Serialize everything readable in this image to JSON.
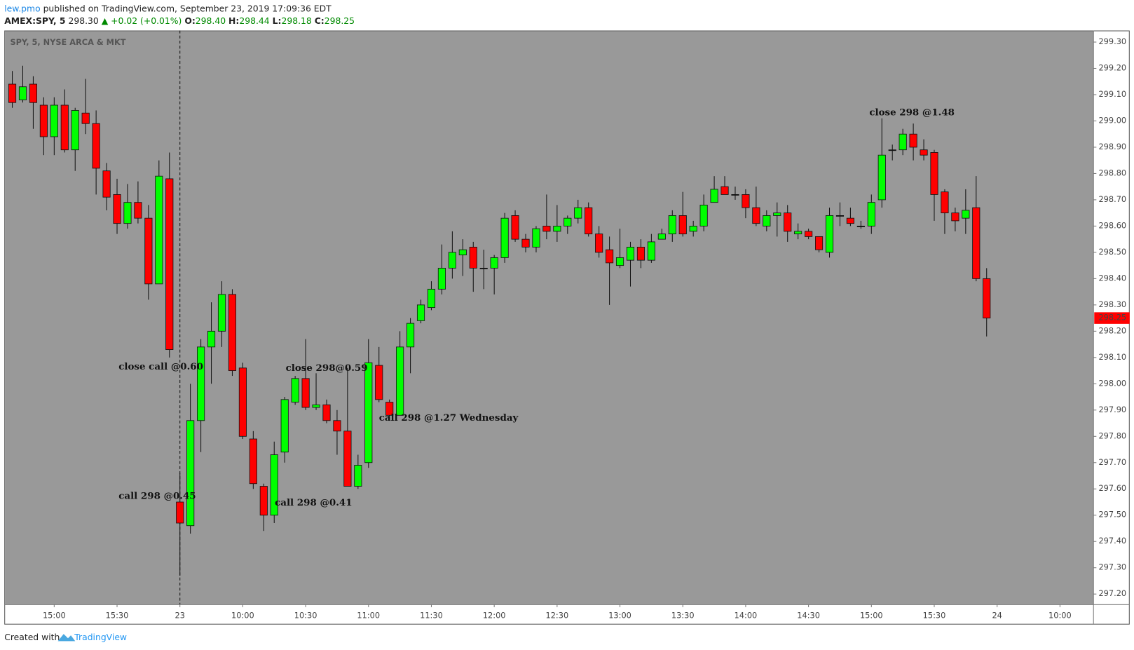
{
  "header": {
    "author": "lew.pmo",
    "published": "published on TradingView.com, September 23, 2019 17:09:36 EDT",
    "symbol": "AMEX:SPY, 5",
    "last": "298.30",
    "change": "▲ +0.02 (+0.01%)",
    "o_label": "O:",
    "o_value": "298.40",
    "h_label": "H:",
    "h_value": "298.44",
    "l_label": "L:",
    "l_value": "298.18",
    "c_label": "C:",
    "c_value": "298.25"
  },
  "footer": {
    "created": "Created with",
    "brand": "TradingView"
  },
  "chart_data": {
    "type": "candlestick",
    "title": "SPY, 5, NYSE ARCA & MKT",
    "up_color": "#00ff00",
    "down_color": "#ff0000",
    "open": [
      299.14,
      299.08,
      299.14,
      299.06,
      298.94,
      299.06,
      298.89,
      299.03,
      298.99,
      298.81,
      298.72,
      298.61,
      298.69,
      298.63,
      298.38,
      298.78,
      297.55,
      297.46,
      297.86,
      298.14,
      298.2,
      298.34,
      298.06,
      297.79,
      297.61,
      297.5,
      297.74,
      297.93,
      298.02,
      297.91,
      297.92,
      297.86,
      297.82,
      297.61,
      297.7,
      298.07,
      297.93,
      297.88,
      298.14,
      298.24,
      298.29,
      298.36,
      298.44,
      298.49,
      298.52,
      298.44,
      298.44,
      298.48,
      298.64,
      298.55,
      298.52,
      298.6,
      298.58,
      298.6,
      298.63,
      298.67,
      298.57,
      298.51,
      298.45,
      298.47,
      298.52,
      298.47,
      298.55,
      298.57,
      298.64,
      298.58,
      298.6,
      298.69,
      298.75,
      298.72,
      298.72,
      298.67,
      298.6,
      298.64,
      298.65,
      298.57,
      298.58,
      298.56,
      298.5,
      298.64,
      298.63,
      298.6,
      298.6,
      298.7,
      298.89,
      298.89,
      298.95,
      298.89,
      298.88,
      298.73,
      298.65,
      298.63,
      298.67,
      298.4
    ],
    "high": [
      299.19,
      299.21,
      299.17,
      299.09,
      299.09,
      299.12,
      299.05,
      299.16,
      299.04,
      298.84,
      298.78,
      298.76,
      298.77,
      298.68,
      298.85,
      298.88,
      297.66,
      298.0,
      298.17,
      298.31,
      298.39,
      298.36,
      298.08,
      297.82,
      297.62,
      297.78,
      297.95,
      298.03,
      298.17,
      298.04,
      297.94,
      297.9,
      298.06,
      297.73,
      298.17,
      298.14,
      297.94,
      298.2,
      298.25,
      298.32,
      298.39,
      298.53,
      298.58,
      298.55,
      298.54,
      298.51,
      298.49,
      298.65,
      298.66,
      298.57,
      298.6,
      298.72,
      298.68,
      298.64,
      298.7,
      298.69,
      298.6,
      298.56,
      298.59,
      298.54,
      298.55,
      298.57,
      298.59,
      298.66,
      298.73,
      298.62,
      298.72,
      298.79,
      298.79,
      298.75,
      298.74,
      298.75,
      298.66,
      298.69,
      298.68,
      298.61,
      298.59,
      298.56,
      298.67,
      298.69,
      298.67,
      298.62,
      298.72,
      299.01,
      298.91,
      298.97,
      298.99,
      298.93,
      298.89,
      298.74,
      298.67,
      298.74,
      298.79,
      298.44
    ],
    "low": [
      299.05,
      299.07,
      298.97,
      298.87,
      298.87,
      298.88,
      298.81,
      298.95,
      298.72,
      298.66,
      298.57,
      298.59,
      298.61,
      298.32,
      298.38,
      298.1,
      297.27,
      297.43,
      297.74,
      298.0,
      298.14,
      298.03,
      297.79,
      297.6,
      297.44,
      297.47,
      297.7,
      297.92,
      297.9,
      297.9,
      297.85,
      297.73,
      297.61,
      297.6,
      297.68,
      297.93,
      297.86,
      297.88,
      298.04,
      298.23,
      298.28,
      298.34,
      298.4,
      298.41,
      298.35,
      298.36,
      298.34,
      298.46,
      298.54,
      298.5,
      298.5,
      298.55,
      298.54,
      298.57,
      298.61,
      298.56,
      298.48,
      298.3,
      298.44,
      298.37,
      298.44,
      298.46,
      298.55,
      298.54,
      298.56,
      298.56,
      298.58,
      298.69,
      298.72,
      298.7,
      298.63,
      298.6,
      298.58,
      298.56,
      298.54,
      298.55,
      298.55,
      298.5,
      298.48,
      298.6,
      298.6,
      298.59,
      298.57,
      298.67,
      298.85,
      298.87,
      298.85,
      298.85,
      298.62,
      298.57,
      298.58,
      298.57,
      298.39,
      298.18
    ],
    "close": [
      299.07,
      299.13,
      299.07,
      298.94,
      299.06,
      298.89,
      299.04,
      298.99,
      298.82,
      298.71,
      298.61,
      298.69,
      298.63,
      298.38,
      298.79,
      298.13,
      297.47,
      297.86,
      298.14,
      298.2,
      298.34,
      298.05,
      297.8,
      297.62,
      297.5,
      297.73,
      297.94,
      298.02,
      297.91,
      297.92,
      297.86,
      297.82,
      297.61,
      297.69,
      298.08,
      297.94,
      297.88,
      298.14,
      298.23,
      298.3,
      298.36,
      298.44,
      298.5,
      298.51,
      298.44,
      298.44,
      298.48,
      298.63,
      298.55,
      298.52,
      298.59,
      298.58,
      298.6,
      298.63,
      298.67,
      298.57,
      298.5,
      298.46,
      298.48,
      298.52,
      298.47,
      298.54,
      298.57,
      298.64,
      298.57,
      298.6,
      298.68,
      298.74,
      298.72,
      298.72,
      298.67,
      298.61,
      298.64,
      298.65,
      298.58,
      298.58,
      298.56,
      298.51,
      298.64,
      298.64,
      298.61,
      298.6,
      298.69,
      298.87,
      298.89,
      298.95,
      298.9,
      298.87,
      298.72,
      298.65,
      298.62,
      298.66,
      298.4,
      298.25
    ],
    "xlim": [
      -0.69,
      103.2
    ],
    "xticks": [
      {
        "value": 4,
        "label": "15:00"
      },
      {
        "value": 10,
        "label": "15:30"
      },
      {
        "value": 16,
        "label": "23"
      },
      {
        "value": 22,
        "label": "10:00"
      },
      {
        "value": 28,
        "label": "10:30"
      },
      {
        "value": 34,
        "label": "11:00"
      },
      {
        "value": 40,
        "label": "11:30"
      },
      {
        "value": 46,
        "label": "12:00"
      },
      {
        "value": 52,
        "label": "12:30"
      },
      {
        "value": 58,
        "label": "13:00"
      },
      {
        "value": 64,
        "label": "13:30"
      },
      {
        "value": 70,
        "label": "14:00"
      },
      {
        "value": 76,
        "label": "14:30"
      },
      {
        "value": 82,
        "label": "15:00"
      },
      {
        "value": 88,
        "label": "15:30"
      },
      {
        "value": 94,
        "label": "24"
      },
      {
        "value": 100,
        "label": "10:00"
      }
    ],
    "ylim": [
      297.161,
      299.344
    ],
    "yticks": [
      {
        "value": 297.2,
        "label": "297.20"
      },
      {
        "value": 297.3,
        "label": "297.30"
      },
      {
        "value": 297.4,
        "label": "297.40"
      },
      {
        "value": 297.5,
        "label": "297.50"
      },
      {
        "value": 297.6,
        "label": "297.60"
      },
      {
        "value": 297.7,
        "label": "297.70"
      },
      {
        "value": 297.8,
        "label": "297.80"
      },
      {
        "value": 297.9,
        "label": "297.90"
      },
      {
        "value": 298.0,
        "label": "298.00"
      },
      {
        "value": 298.1,
        "label": "298.10"
      },
      {
        "value": 298.2,
        "label": "298.20"
      },
      {
        "value": 298.3,
        "label": "298.30"
      },
      {
        "value": 298.4,
        "label": "298.40"
      },
      {
        "value": 298.5,
        "label": "298.50"
      },
      {
        "value": 298.6,
        "label": "298.60"
      },
      {
        "value": 298.7,
        "label": "298.70"
      },
      {
        "value": 298.8,
        "label": "298.80"
      },
      {
        "value": 298.9,
        "label": "298.90"
      },
      {
        "value": 299.0,
        "label": "299.00"
      },
      {
        "value": 299.1,
        "label": "299.10"
      },
      {
        "value": 299.2,
        "label": "299.20"
      },
      {
        "value": 299.3,
        "label": "299.30"
      }
    ],
    "annotations": [
      "close call @0.60",
      "close 298@0.59",
      "call 298 @1.27 Wednesday",
      "call 298 @0.45",
      "call 298 @0.41",
      "close 298 @1.48"
    ]
  }
}
